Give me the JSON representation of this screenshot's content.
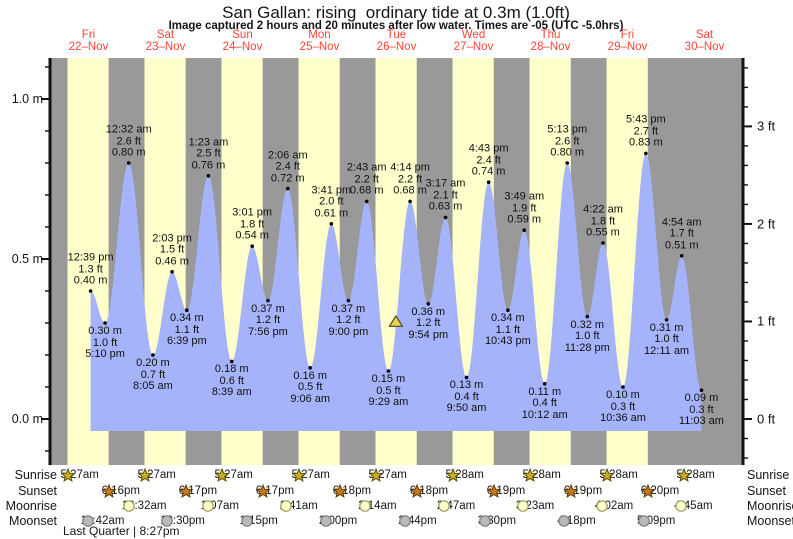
{
  "title": "San Gallan: rising  ordinary tide at 0.3m (1.0ft)",
  "subtitle": "Image captured 2 hours and 20 minutes after low water. Times are -05 (UTC -5.0hrs)",
  "colors": {
    "night_band": "#999999",
    "daylight_band": "#ffffcc",
    "water_fill": "#a5b3fa",
    "axis": "#111111",
    "day_label": "#ff4336",
    "now_marker_fill": "#e8d44b",
    "now_marker_stroke": "#555533",
    "sunrise_star_fill": "#c9ad2a",
    "sunrise_star_stroke": "#5c4b00",
    "sunset_star_fill": "#c87a1a",
    "sunset_star_stroke": "#5c3a00",
    "moonrise_circle_fill": "#ffffcc",
    "moonrise_circle_stroke": "#99995c",
    "moonset_circle_fill": "#b9b9b9",
    "moonset_circle_stroke": "#7d7d7d"
  },
  "days": [
    {
      "name": "Fri",
      "date": "22–Nov"
    },
    {
      "name": "Sat",
      "date": "23–Nov"
    },
    {
      "name": "Sun",
      "date": "24–Nov"
    },
    {
      "name": "Mon",
      "date": "25–Nov"
    },
    {
      "name": "Tue",
      "date": "26–Nov"
    },
    {
      "name": "Wed",
      "date": "27–Nov"
    },
    {
      "name": "Thu",
      "date": "28–Nov"
    },
    {
      "name": "Fri",
      "date": "29–Nov"
    },
    {
      "name": "Sat",
      "date": "30–Nov"
    }
  ],
  "chart_data": {
    "type": "area",
    "title": "San Gallan tide curve 22–30 Nov",
    "x_range_days": [
      0,
      9
    ],
    "ylim_m": [
      -0.14,
      1.13
    ],
    "units": {
      "left": "m",
      "right": "ft"
    },
    "grid": false,
    "y_ticks_m": [
      {
        "value_m": 1.0,
        "label": "1.0 m"
      },
      {
        "value_m": 0.5,
        "label": "0.5 m"
      },
      {
        "value_m": 0.0,
        "label": "0.0 m"
      }
    ],
    "y_ticks_ft": [
      {
        "value_ft": 3,
        "label": "3 ft"
      },
      {
        "value_ft": 2,
        "label": "2 ft"
      },
      {
        "value_ft": 1,
        "label": "1 ft"
      },
      {
        "value_ft": 0,
        "label": "0 ft"
      }
    ],
    "events": [
      {
        "day": 0,
        "type": "high",
        "time": "12:39 pm",
        "ft": "1.3 ft",
        "m": "0.40 m"
      },
      {
        "day": 0,
        "type": "low",
        "time": "5:10 pm",
        "ft": "1.0 ft",
        "m": "0.30 m"
      },
      {
        "day": 1,
        "type": "high",
        "time": "12:32 am",
        "ft": "2.6 ft",
        "m": "0.80 m"
      },
      {
        "day": 1,
        "type": "low",
        "time": "8:05 am",
        "ft": "0.7 ft",
        "m": "0.20 m"
      },
      {
        "day": 1,
        "type": "high",
        "time": "2:03 pm",
        "ft": "1.5 ft",
        "m": "0.46 m"
      },
      {
        "day": 1,
        "type": "low",
        "time": "6:39 pm",
        "ft": "1.1 ft",
        "m": "0.34 m"
      },
      {
        "day": 2,
        "type": "high",
        "time": "1:23 am",
        "ft": "2.5 ft",
        "m": "0.76 m"
      },
      {
        "day": 2,
        "type": "low",
        "time": "8:39 am",
        "ft": "0.6 ft",
        "m": "0.18 m"
      },
      {
        "day": 2,
        "type": "high",
        "time": "3:01 pm",
        "ft": "1.8 ft",
        "m": "0.54 m"
      },
      {
        "day": 2,
        "type": "low",
        "time": "7:56 pm",
        "ft": "1.2 ft",
        "m": "0.37 m"
      },
      {
        "day": 3,
        "type": "high",
        "time": "2:06 am",
        "ft": "2.4 ft",
        "m": "0.72 m"
      },
      {
        "day": 3,
        "type": "low",
        "time": "9:06 am",
        "ft": "0.5 ft",
        "m": "0.16 m"
      },
      {
        "day": 3,
        "type": "high",
        "time": "3:41 pm",
        "ft": "2.0 ft",
        "m": "0.61 m"
      },
      {
        "day": 3,
        "type": "low",
        "time": "9:00 pm",
        "ft": "1.2 ft",
        "m": "0.37 m"
      },
      {
        "day": 4,
        "type": "high",
        "time": "2:43 am",
        "ft": "2.2 ft",
        "m": "0.68 m"
      },
      {
        "day": 4,
        "type": "low",
        "time": "9:29 am",
        "ft": "0.5 ft",
        "m": "0.15 m"
      },
      {
        "day": 4,
        "type": "high",
        "time": "4:14 pm",
        "ft": "2.2 ft",
        "m": "0.68 m"
      },
      {
        "day": 4,
        "type": "low",
        "time": "9:54 pm",
        "ft": "1.2 ft",
        "m": "0.36 m"
      },
      {
        "day": 5,
        "type": "high",
        "time": "3:17 am",
        "ft": "2.1 ft",
        "m": "0.63 m"
      },
      {
        "day": 5,
        "type": "low",
        "time": "9:50 am",
        "ft": "0.4 ft",
        "m": "0.13 m"
      },
      {
        "day": 5,
        "type": "high",
        "time": "4:43 pm",
        "ft": "2.4 ft",
        "m": "0.74 m"
      },
      {
        "day": 5,
        "type": "low",
        "time": "10:43 pm",
        "ft": "1.1 ft",
        "m": "0.34 m"
      },
      {
        "day": 6,
        "type": "high",
        "time": "3:49 am",
        "ft": "1.9 ft",
        "m": "0.59 m"
      },
      {
        "day": 6,
        "type": "low",
        "time": "10:12 am",
        "ft": "0.4 ft",
        "m": "0.11 m"
      },
      {
        "day": 6,
        "type": "high",
        "time": "5:13 pm",
        "ft": "2.6 ft",
        "m": "0.80 m"
      },
      {
        "day": 6,
        "type": "low",
        "time": "11:28 pm",
        "ft": "1.0 ft",
        "m": "0.32 m"
      },
      {
        "day": 7,
        "type": "high",
        "time": "4:22 am",
        "ft": "1.8 ft",
        "m": "0.55 m"
      },
      {
        "day": 7,
        "type": "low",
        "time": "10:36 am",
        "ft": "0.3 ft",
        "m": "0.10 m"
      },
      {
        "day": 7,
        "type": "high",
        "time": "5:43 pm",
        "ft": "2.7 ft",
        "m": "0.83 m"
      },
      {
        "day": 8,
        "type": "low",
        "time": "12:11 am",
        "ft": "1.0 ft",
        "m": "0.31 m"
      },
      {
        "day": 8,
        "type": "high",
        "time": "4:54 am",
        "ft": "1.7 ft",
        "m": "0.51 m"
      },
      {
        "day": 8,
        "type": "low",
        "time": "11:03 am",
        "ft": "0.3 ft",
        "m": "0.09 m"
      }
    ],
    "now_marker": {
      "day": 4,
      "time": "11:49 am",
      "value_m": 0.305
    }
  },
  "astro": {
    "rows": [
      {
        "label": "Sunrise",
        "icon": "sunrise-star-icon",
        "entries": [
          {
            "day": 0,
            "time": "5:27am"
          },
          {
            "day": 1,
            "time": "5:27am"
          },
          {
            "day": 2,
            "time": "5:27am"
          },
          {
            "day": 3,
            "time": "5:27am"
          },
          {
            "day": 4,
            "time": "5:27am"
          },
          {
            "day": 5,
            "time": "5:28am"
          },
          {
            "day": 6,
            "time": "5:28am"
          },
          {
            "day": 7,
            "time": "5:28am"
          },
          {
            "day": 8,
            "time": "5:28am"
          }
        ]
      },
      {
        "label": "Sunset",
        "icon": "sunset-star-icon",
        "entries": [
          {
            "day": 0,
            "time": "6:16pm"
          },
          {
            "day": 1,
            "time": "6:17pm"
          },
          {
            "day": 2,
            "time": "6:17pm"
          },
          {
            "day": 3,
            "time": "6:18pm"
          },
          {
            "day": 4,
            "time": "6:18pm"
          },
          {
            "day": 5,
            "time": "6:19pm"
          },
          {
            "day": 6,
            "time": "6:19pm"
          },
          {
            "day": 7,
            "time": "6:20pm"
          }
        ]
      },
      {
        "label": "Moonrise",
        "icon": "moonrise-circle-icon",
        "entries": [
          {
            "day": 1,
            "time": "12:32am"
          },
          {
            "day": 2,
            "time": "1:07am"
          },
          {
            "day": 3,
            "time": "1:41am"
          },
          {
            "day": 4,
            "time": "2:14am"
          },
          {
            "day": 5,
            "time": "2:47am"
          },
          {
            "day": 6,
            "time": "3:23am"
          },
          {
            "day": 7,
            "time": "4:02am"
          },
          {
            "day": 8,
            "time": "4:45am"
          }
        ]
      },
      {
        "label": "Moonset",
        "icon": "moonset-circle-icon",
        "entries": [
          {
            "day": 0,
            "time": "11:42am"
          },
          {
            "day": 1,
            "time": "12:30pm"
          },
          {
            "day": 2,
            "time": "1:15pm"
          },
          {
            "day": 3,
            "time": "2:00pm"
          },
          {
            "day": 4,
            "time": "2:44pm"
          },
          {
            "day": 5,
            "time": "3:30pm"
          },
          {
            "day": 6,
            "time": "4:18pm"
          },
          {
            "day": 7,
            "time": "5:09pm"
          }
        ]
      }
    ],
    "footer": "Last Quarter | 8:27pm"
  }
}
